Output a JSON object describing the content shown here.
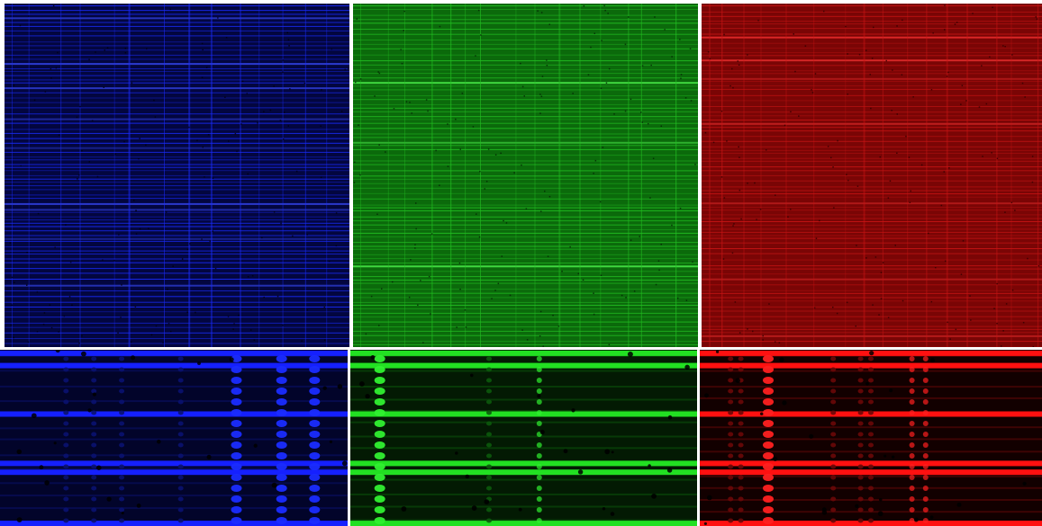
{
  "panels": [
    {
      "id": "p-tb",
      "name": "overview-blue-channel",
      "kind": "overview",
      "base": "#03063f",
      "line": "#1a2cff",
      "bright": "#3a4cff",
      "speck": "#000010"
    },
    {
      "id": "p-tg",
      "name": "overview-green-channel",
      "kind": "overview",
      "base": "#0b6a0b",
      "line": "#22c022",
      "bright": "#4cf04c",
      "speck": "#052405"
    },
    {
      "id": "p-tr",
      "name": "overview-red-channel",
      "kind": "overview",
      "base": "#7a0505",
      "line": "#c81515",
      "bright": "#f03030",
      "speck": "#300000"
    },
    {
      "id": "p-bb",
      "name": "zoom-blue-channel",
      "kind": "zoom",
      "base": "#02042a",
      "line": "#1520ff",
      "dot": "#1a2cff",
      "faint": "#0a1270",
      "speck": "#000000",
      "dots": {
        "strong": [
          0.68,
          0.81,
          0.905
        ],
        "medium": [],
        "faint": [
          0.19,
          0.27,
          0.35,
          0.52
        ]
      }
    },
    {
      "id": "p-bg",
      "name": "zoom-green-channel",
      "kind": "zoom",
      "base": "#031a03",
      "line": "#22e022",
      "dot": "#30f030",
      "faint": "#0c5a0c",
      "speck": "#000000",
      "dots": {
        "strong": [
          0.085
        ],
        "medium": [
          0.545
        ],
        "faint": [
          0.4
        ]
      }
    },
    {
      "id": "p-br",
      "name": "zoom-red-channel",
      "kind": "zoom",
      "base": "#120000",
      "line": "#ff1010",
      "dot": "#ff2020",
      "faint": "#6a0808",
      "speck": "#000000",
      "dots": {
        "strong": [
          0.2
        ],
        "medium": [
          0.62,
          0.66
        ],
        "faint": [
          0.09,
          0.12,
          0.39,
          0.47,
          0.5
        ]
      }
    }
  ]
}
